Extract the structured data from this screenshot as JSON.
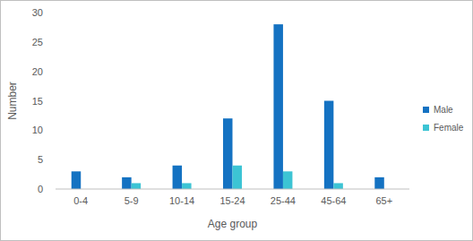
{
  "chart_data": {
    "type": "bar",
    "x_label": "Age group",
    "y_label": "Number",
    "categories": [
      "0-4",
      "5-9",
      "10-14",
      "15-24",
      "25-44",
      "45-64",
      "65+"
    ],
    "series": [
      {
        "name": "Male",
        "color": "#1472c2",
        "values": [
          3,
          2,
          4,
          12,
          28,
          15,
          2
        ]
      },
      {
        "name": "Female",
        "color": "#3cc4d4",
        "values": [
          0,
          1,
          1,
          4,
          3,
          1,
          0
        ]
      }
    ],
    "ylim": [
      0,
      30
    ],
    "yticks": [
      0,
      5,
      10,
      15,
      20,
      25,
      30
    ],
    "grid": false,
    "legend": "right"
  }
}
